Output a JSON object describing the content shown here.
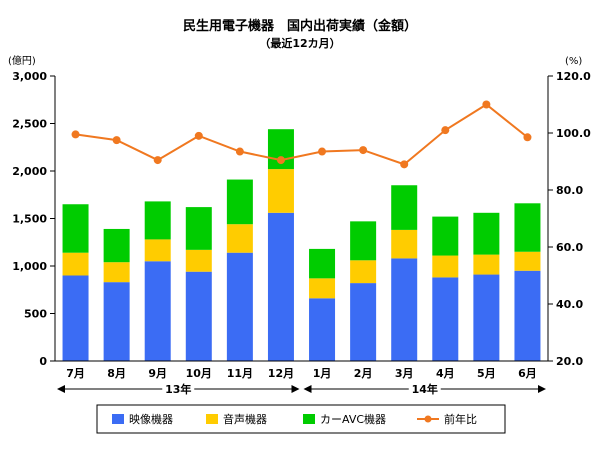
{
  "chart_data": {
    "type": "bar",
    "stacked": true,
    "title": "民生用電子機器　国内出荷実績（金額）",
    "subtitle": "（最近12カ月）",
    "y_left_unit": "(億円)",
    "y_right_unit": "(%)",
    "categories": [
      "7月",
      "8月",
      "9月",
      "10月",
      "11月",
      "12月",
      "1月",
      "2月",
      "3月",
      "4月",
      "5月",
      "6月"
    ],
    "year_groups": [
      {
        "label": "13年",
        "from": 0,
        "to": 5
      },
      {
        "label": "14年",
        "from": 6,
        "to": 11
      }
    ],
    "y_left": {
      "min": 0,
      "max": 3000,
      "step": 500,
      "tick_labels": [
        "0",
        "500",
        "1,000",
        "1,500",
        "2,000",
        "2,500",
        "3,000"
      ]
    },
    "y_right": {
      "min": 20,
      "max": 120,
      "step": 20,
      "tick_labels": [
        "20.0",
        "40.0",
        "60.0",
        "80.0",
        "100.0",
        "120.0"
      ]
    },
    "series": [
      {
        "name": "映像機器",
        "axis": "left",
        "color": "#3b6cf4",
        "values": [
          900,
          830,
          1050,
          940,
          1140,
          1560,
          660,
          820,
          1080,
          880,
          910,
          950
        ]
      },
      {
        "name": "音声機器",
        "axis": "left",
        "color": "#ffcc00",
        "values": [
          240,
          210,
          230,
          230,
          300,
          460,
          210,
          240,
          300,
          230,
          210,
          200
        ]
      },
      {
        "name": "カーAVC機器",
        "axis": "left",
        "color": "#00cc00",
        "values": [
          510,
          350,
          400,
          450,
          470,
          420,
          310,
          410,
          470,
          410,
          440,
          510
        ]
      },
      {
        "name": "前年比",
        "axis": "right",
        "type": "line",
        "color": "#f07820",
        "values": [
          99.5,
          97.5,
          90.5,
          99,
          93.5,
          90.5,
          93.5,
          94,
          89,
          101,
          110,
          98.5
        ]
      }
    ],
    "grid": false,
    "legend_position": "bottom"
  }
}
